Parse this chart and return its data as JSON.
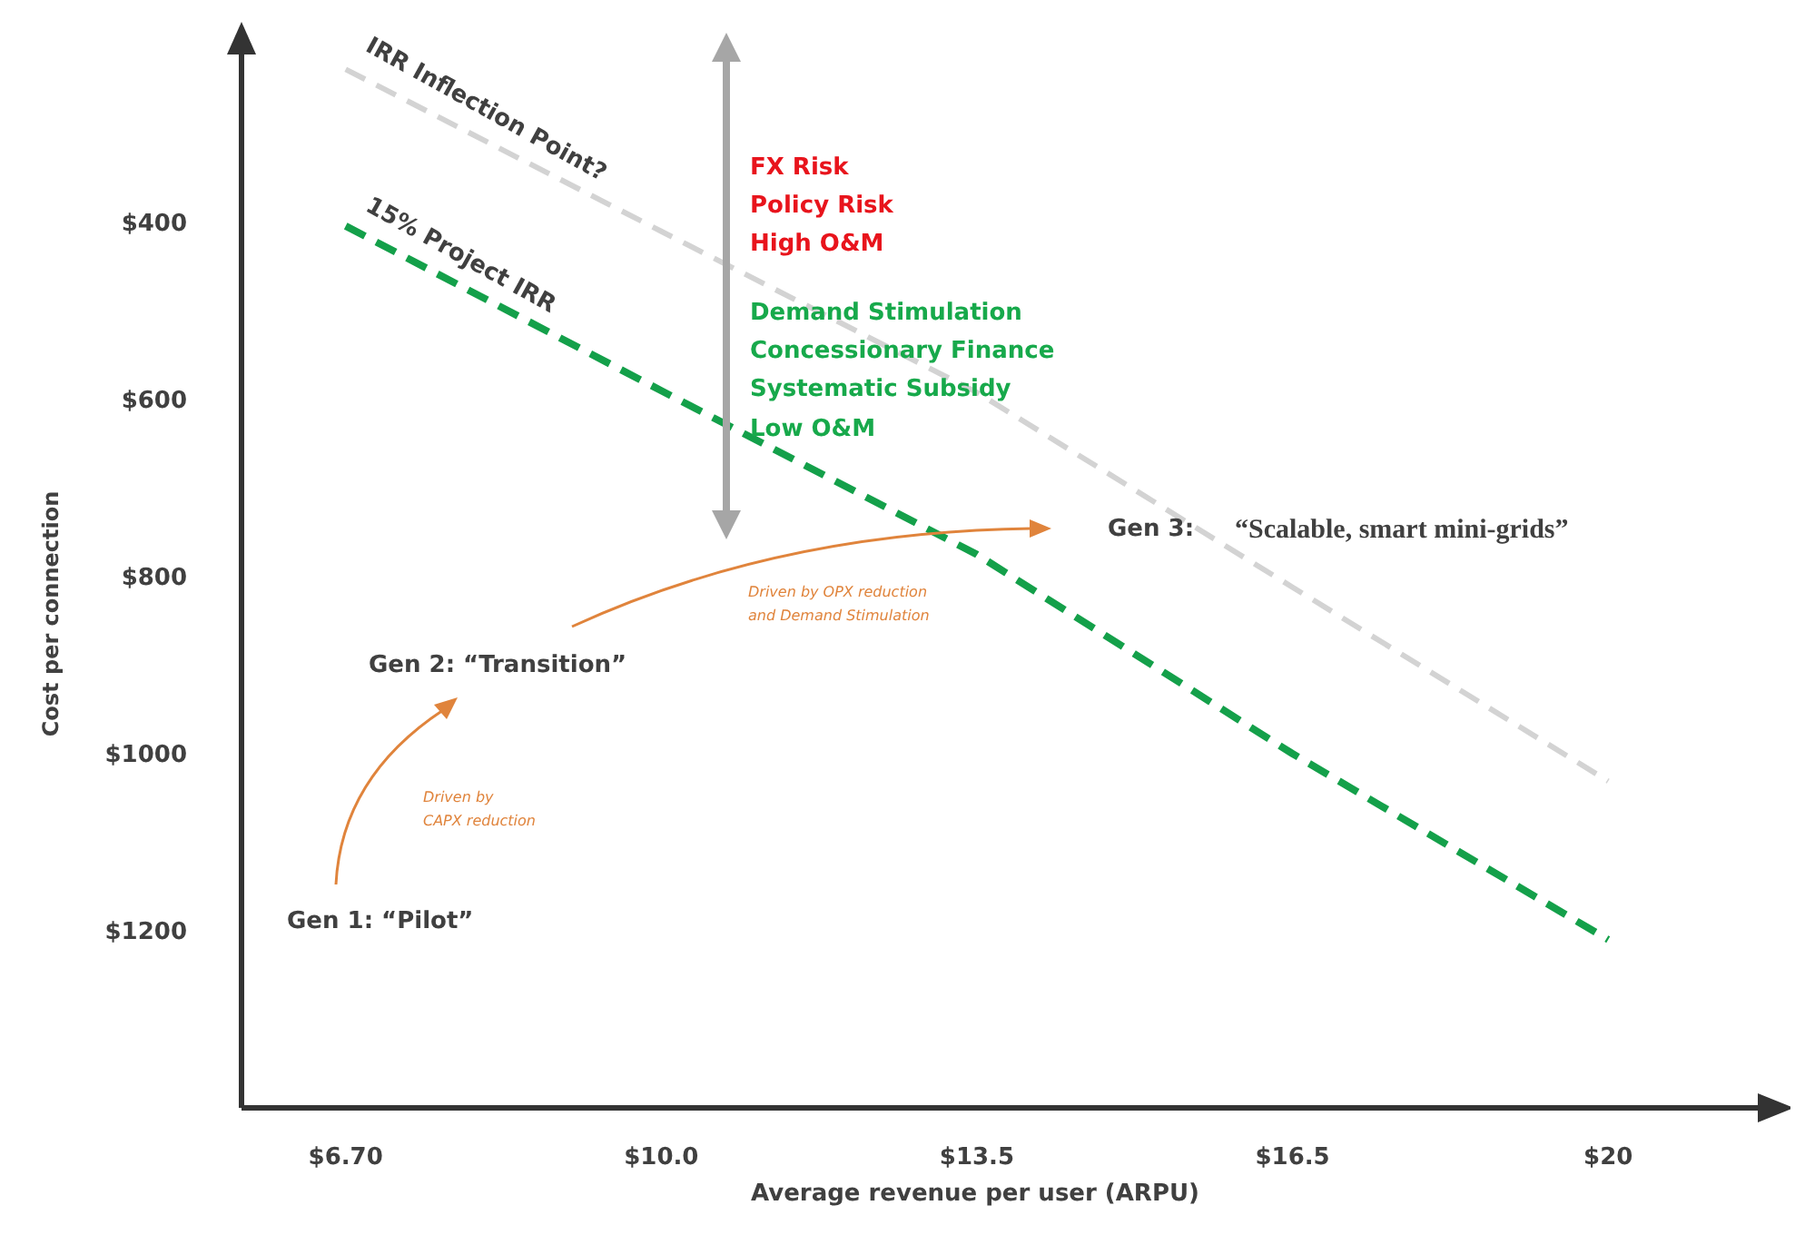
{
  "chart_data": {
    "type": "line",
    "xlabel": "Average revenue per user (ARPU)",
    "ylabel": "Cost per connection",
    "categories": [
      "$6.70",
      "$10.0",
      "$13.5",
      "$16.5",
      "$20"
    ],
    "series": [
      {
        "name": "IRR Inflection Point?",
        "color": "#d3d3d3",
        "values": [
          227,
          410,
          592,
          812,
          1031
        ]
      },
      {
        "name": "15% Project IRR",
        "color": "#14a04a",
        "values": [
          404,
          590,
          775,
          1000,
          1210
        ]
      }
    ],
    "ylim": [
      1400,
      200
    ],
    "yticks": [
      {
        "value": 400,
        "label": "$400"
      },
      {
        "value": 600,
        "label": "$600"
      },
      {
        "value": 800,
        "label": "$800"
      },
      {
        "value": 1000,
        "label": "$1000"
      },
      {
        "value": 1200,
        "label": "$1200"
      }
    ],
    "annotations": [
      "FX Risk",
      "Policy Risk",
      "High O&M",
      "Demand Stimulation",
      "Concessionary Finance",
      "Systematic Subsidy",
      "Low O&M",
      "Gen 1: “Pilot”",
      "Gen 2: “Transition”",
      "Gen 3:",
      "“Scalable, smart mini-grids”",
      "Driven by",
      "CAPX reduction",
      "Driven by OPX reduction",
      "and Demand Stimulation"
    ],
    "line_style": "dashed",
    "marker": "none",
    "grid": false,
    "legend": false
  }
}
